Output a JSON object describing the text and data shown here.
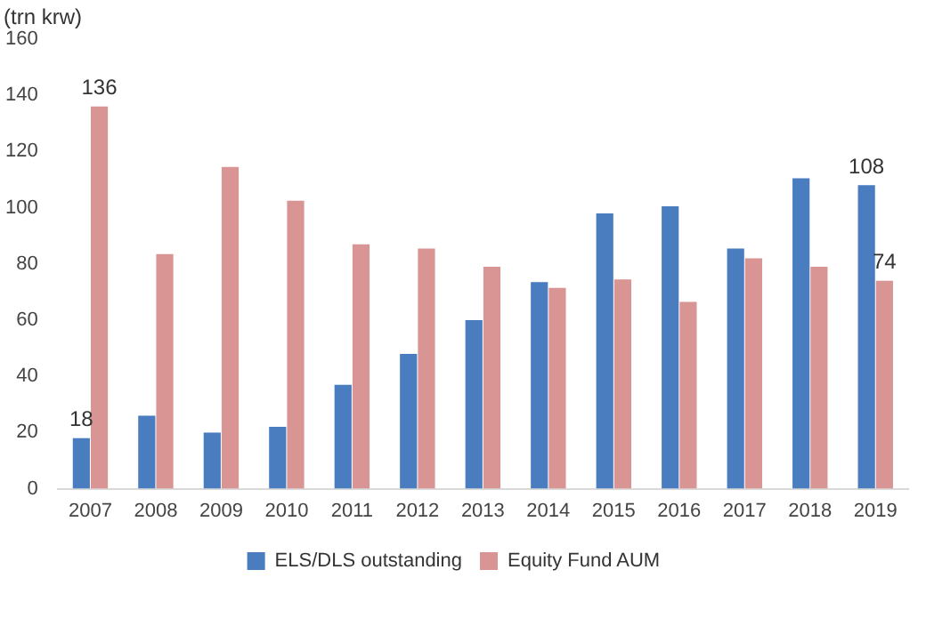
{
  "chart_data": {
    "type": "bar",
    "ylabel": "(trn krw)",
    "categories": [
      "2007",
      "2008",
      "2009",
      "2010",
      "2011",
      "2012",
      "2013",
      "2014",
      "2015",
      "2016",
      "2017",
      "2018",
      "2019"
    ],
    "series": [
      {
        "name": "ELS/DLS outstanding",
        "color": "#4a7dbf",
        "values": [
          18,
          26,
          20,
          22,
          37,
          48,
          60,
          73.5,
          98,
          100.5,
          85.5,
          110.5,
          108
        ],
        "value_labels": [
          "18",
          null,
          null,
          null,
          null,
          null,
          null,
          null,
          null,
          null,
          null,
          null,
          "108"
        ]
      },
      {
        "name": "Equity Fund AUM",
        "color": "#d99594",
        "values": [
          136,
          83.5,
          114.5,
          102.5,
          87,
          85.5,
          79,
          71.5,
          74.5,
          66.5,
          82,
          79,
          74
        ],
        "value_labels": [
          "136",
          null,
          null,
          null,
          null,
          null,
          null,
          null,
          null,
          null,
          null,
          null,
          "74"
        ]
      }
    ],
    "ylim": [
      0,
      160
    ],
    "yticks": [
      0,
      20,
      40,
      60,
      80,
      100,
      120,
      140,
      160
    ],
    "grid": false,
    "legend": "bottom"
  }
}
